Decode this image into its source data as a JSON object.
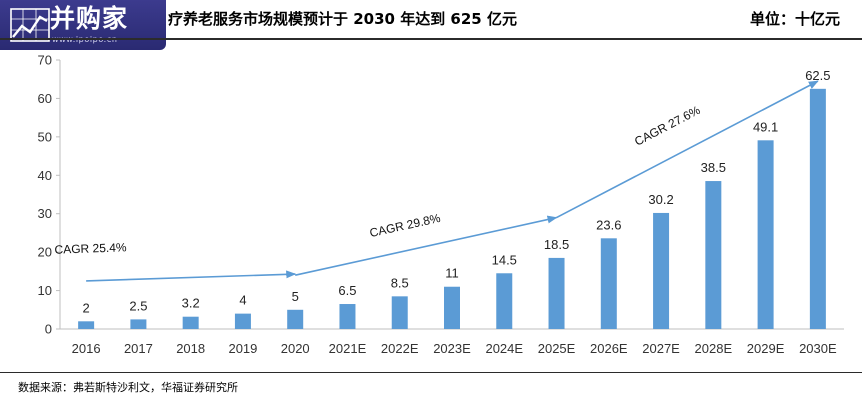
{
  "header": {
    "logo_text": "并购家",
    "logo_url": "www.ipoipo.cn",
    "title_visible": "疗养老服务市场规模预计于 2030 年达到 625 亿元",
    "unit": "单位：十亿元"
  },
  "footer": {
    "source": "数据来源：弗若斯特沙利文，华福证券研究所"
  },
  "colors": {
    "bar": "#5b9bd5",
    "arrow": "#5b9bd5",
    "logo_bg": "#33337f",
    "axis": "#bfbfbf"
  },
  "chart_data": {
    "type": "bar",
    "categories": [
      "2016",
      "2017",
      "2018",
      "2019",
      "2020",
      "2021E",
      "2022E",
      "2023E",
      "2024E",
      "2025E",
      "2026E",
      "2027E",
      "2028E",
      "2029E",
      "2030E"
    ],
    "values": [
      2,
      2.5,
      3.2,
      4,
      5,
      6.5,
      8.5,
      11,
      14.5,
      18.5,
      23.6,
      30.2,
      38.5,
      49.1,
      62.5
    ],
    "value_labels": [
      "2",
      "2.5",
      "3.2",
      "4",
      "5",
      "6.5",
      "8.5",
      "11",
      "14.5",
      "18.5",
      "23.6",
      "30.2",
      "38.5",
      "49.1",
      "62.5"
    ],
    "ylim": [
      0,
      70
    ],
    "yticks": [
      0,
      10,
      20,
      30,
      40,
      50,
      60,
      70
    ],
    "grid": false,
    "legend": "none",
    "title": "",
    "xlabel": "",
    "ylabel": "",
    "annotations": [
      {
        "label": "CAGR 25.4%",
        "from_category": "2016",
        "to_category": "2020",
        "from_value": 12.5,
        "to_value": 14.3
      },
      {
        "label": "CAGR 29.8%",
        "from_category": "2020",
        "to_category": "2025E",
        "from_value": 14.0,
        "to_value": 29.0
      },
      {
        "label": "CAGR 27.6%",
        "from_category": "2025E",
        "to_category": "2030E",
        "from_value": 29.0,
        "to_value": 64.5
      }
    ]
  }
}
